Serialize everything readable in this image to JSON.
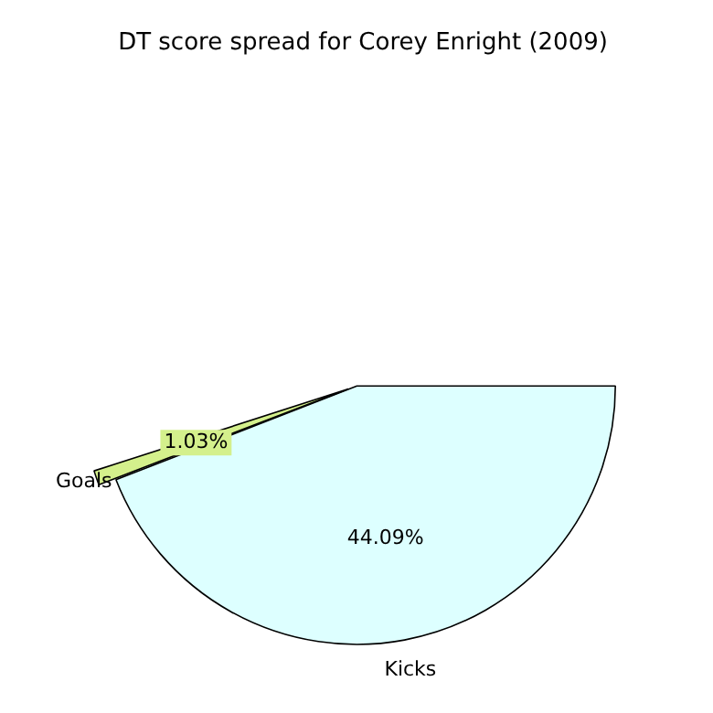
{
  "chart_data": {
    "type": "pie",
    "title": "DT score spread for Corey Enright (2009)",
    "categories": [
      "Kicks",
      "Goals"
    ],
    "values": [
      44.09,
      1.03
    ],
    "colors": [
      "#ddffff",
      "#d4f08c"
    ],
    "value_labels": [
      "44.09%",
      "1.03%"
    ]
  }
}
